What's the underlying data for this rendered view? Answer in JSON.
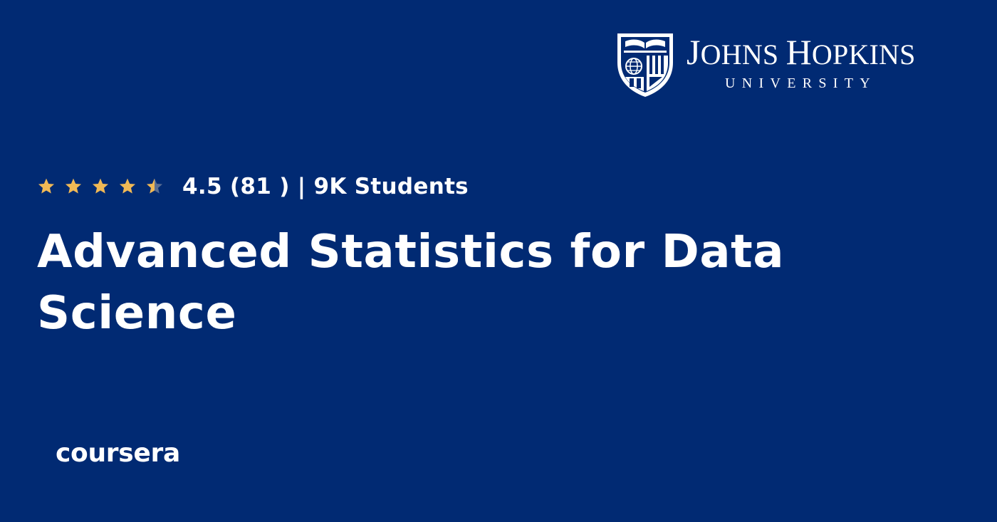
{
  "theme": {
    "background": "#012a73",
    "text": "#ffffff",
    "star_color": "#f1b955",
    "star_empty_color": "#5b6f93"
  },
  "university": {
    "name_line": "JOHNS HOPKINS",
    "sub_line": "UNIVERSITY",
    "icon": "university-shield-icon"
  },
  "rating": {
    "value": 4.5,
    "max": 5,
    "text": "4.5 (81 ) | 9K Students",
    "icon": "star-icon"
  },
  "course": {
    "title": "Advanced Statistics for Data Science"
  },
  "platform": {
    "name": "coursera"
  }
}
